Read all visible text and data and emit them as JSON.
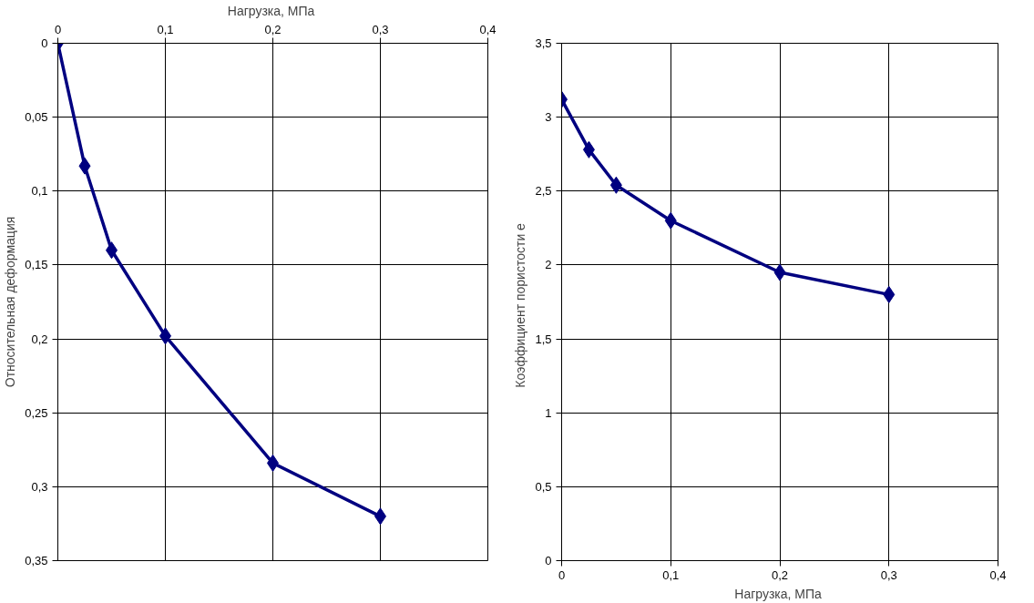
{
  "chart_data": [
    {
      "type": "line",
      "x2label": "Нагрузка,  МПа",
      "ylabel": "Относительная деформация",
      "x2lim": [
        0,
        0.4
      ],
      "x2ticks": [
        0,
        {
          "value": 0.1,
          "label": "0,1"
        },
        {
          "value": 0.2,
          "label": "0,2"
        },
        {
          "value": 0.3,
          "label": "0,3"
        },
        {
          "value": 0.4,
          "label": "0,4"
        }
      ],
      "ylim": [
        0.35,
        0
      ],
      "yticks": [
        0,
        {
          "value": 0.05,
          "label": "0,05"
        },
        {
          "value": 0.1,
          "label": "0,1"
        },
        {
          "value": 0.15,
          "label": "0,15"
        },
        {
          "value": 0.2,
          "label": "0,2"
        },
        {
          "value": 0.25,
          "label": "0,25"
        },
        {
          "value": 0.3,
          "label": "0,3"
        },
        {
          "value": 0.35,
          "label": "0,35"
        }
      ],
      "grid": true,
      "marker": "diamond",
      "line_style": "solid",
      "x": [
        0,
        0.025,
        0.05,
        0.1,
        0.2,
        0.3
      ],
      "series": [
        {
          "color": "#000080",
          "axis": "x2",
          "values": [
            0,
            0.083,
            0.14,
            0.198,
            0.284,
            0.32
          ]
        }
      ]
    },
    {
      "type": "line",
      "xlabel": "Нагрузка,  МПа",
      "ylabel": "Коэффициент  пористости  е",
      "xlim": [
        0,
        0.4
      ],
      "xticks": [
        0,
        {
          "value": 0.1,
          "label": "0,1"
        },
        {
          "value": 0.2,
          "label": "0,2"
        },
        {
          "value": 0.3,
          "label": "0,3"
        },
        {
          "value": 0.4,
          "label": "0,4"
        }
      ],
      "ylim": [
        0,
        3.5
      ],
      "yticks": [
        0,
        {
          "value": 0.5,
          "label": "0,5"
        },
        1,
        {
          "value": 1.5,
          "label": "1,5"
        },
        2,
        {
          "value": 2.5,
          "label": "2,5"
        },
        3,
        {
          "value": 3.5,
          "label": "3,5"
        }
      ],
      "grid": true,
      "marker": "diamond",
      "line_style": "solid",
      "x": [
        0,
        0.025,
        0.05,
        0.1,
        0.2,
        0.3
      ],
      "series": [
        {
          "color": "#000080",
          "values": [
            3.12,
            2.78,
            2.54,
            2.3,
            1.95,
            1.8
          ]
        }
      ]
    }
  ]
}
